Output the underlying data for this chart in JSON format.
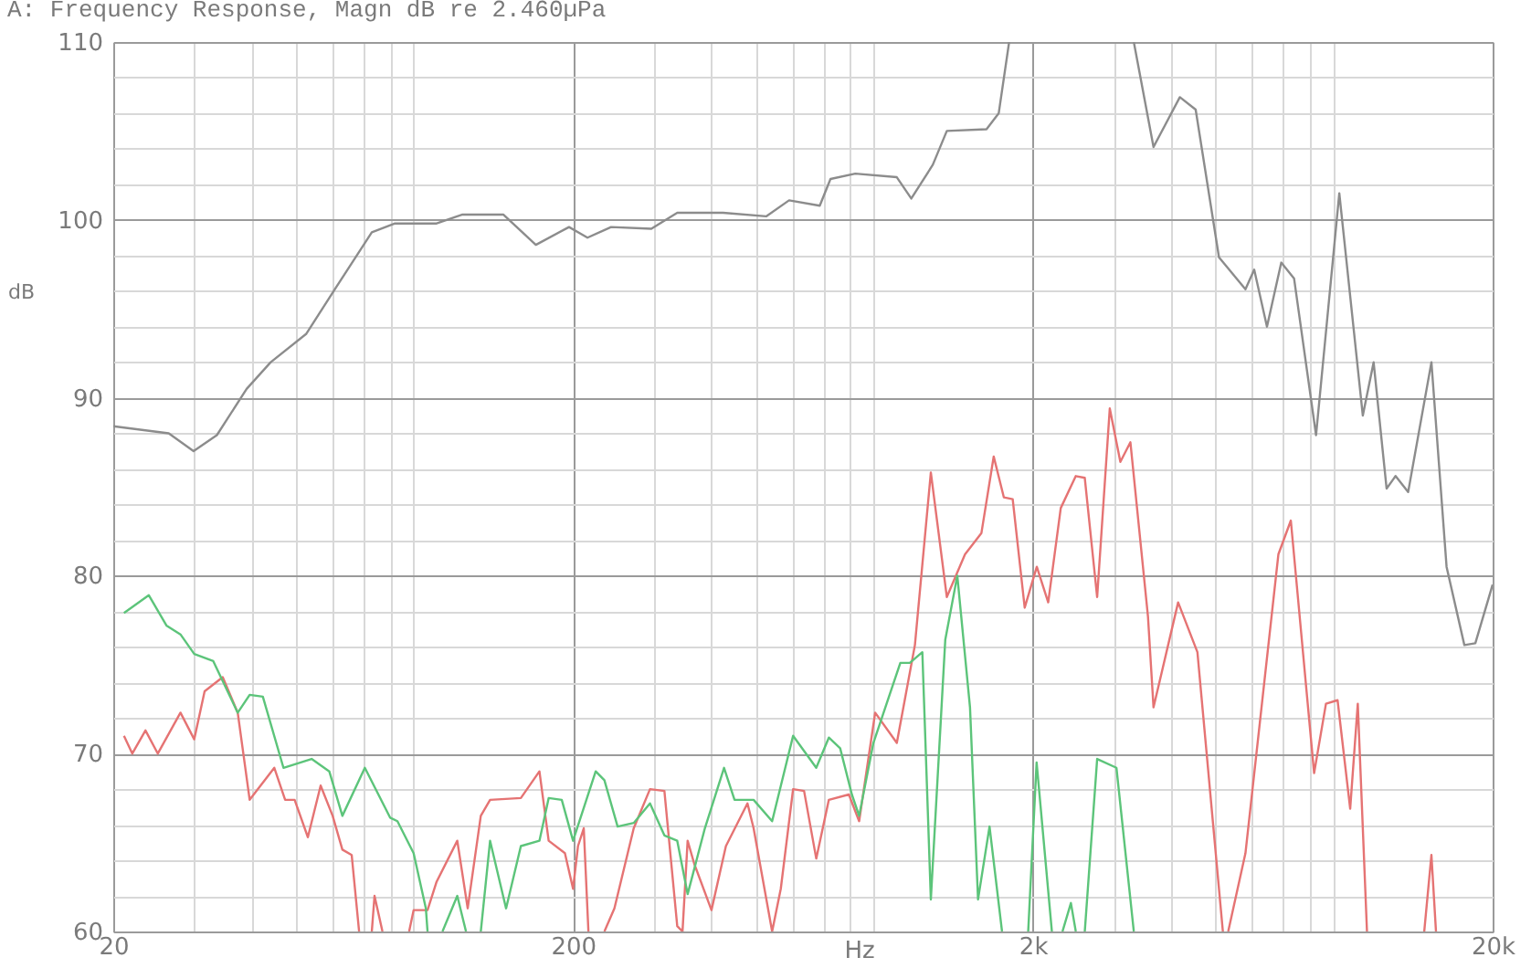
{
  "chart_data": {
    "type": "line",
    "title": "A: Frequency Response, Magn dB re 2.460µPa",
    "xlabel": "Hz",
    "ylabel": "dB",
    "log": "x",
    "grid": true,
    "xlim": [
      20,
      20000
    ],
    "ylim": [
      60,
      110
    ],
    "xticks": [
      20,
      {
        "value": 30,
        "label": null
      },
      {
        "value": 40,
        "label": null
      },
      {
        "value": 50,
        "label": null
      },
      {
        "value": 60,
        "label": null
      },
      {
        "value": 70,
        "label": null
      },
      {
        "value": 80,
        "label": null
      },
      {
        "value": 90,
        "label": null
      },
      200,
      {
        "value": 300,
        "label": null
      },
      {
        "value": 400,
        "label": null
      },
      {
        "value": 500,
        "label": null
      },
      {
        "value": 600,
        "label": null
      },
      {
        "value": 700,
        "label": null
      },
      {
        "value": 800,
        "label": null
      },
      {
        "value": 900,
        "label": null
      },
      {
        "value": 2000,
        "label": "2k"
      },
      {
        "value": 3000,
        "label": null
      },
      {
        "value": 4000,
        "label": null
      },
      {
        "value": 5000,
        "label": null
      },
      {
        "value": 6000,
        "label": null
      },
      {
        "value": 7000,
        "label": null
      },
      {
        "value": 8000,
        "label": null
      },
      {
        "value": 9000,
        "label": null
      },
      {
        "value": 20000,
        "label": "20k"
      }
    ],
    "yticks": [
      60,
      {
        "value": 62,
        "label": null
      },
      {
        "value": 64,
        "label": null
      },
      {
        "value": 66,
        "label": null
      },
      {
        "value": 68,
        "label": null
      },
      70,
      {
        "value": 72,
        "label": null
      },
      {
        "value": 74,
        "label": null
      },
      {
        "value": 76,
        "label": null
      },
      {
        "value": 78,
        "label": null
      },
      80,
      {
        "value": 82,
        "label": null
      },
      {
        "value": 84,
        "label": null
      },
      {
        "value": 86,
        "label": null
      },
      {
        "value": 88,
        "label": null
      },
      90,
      {
        "value": 92,
        "label": null
      },
      {
        "value": 94,
        "label": null
      },
      {
        "value": 96,
        "label": null
      },
      {
        "value": 98,
        "label": null
      },
      100,
      {
        "value": 102,
        "label": null
      },
      {
        "value": 104,
        "label": null
      },
      {
        "value": 106,
        "label": null
      },
      {
        "value": 108,
        "label": null
      },
      110
    ],
    "series": [
      {
        "color": "#8c8c8c",
        "x": [
          20,
          26.4,
          29.9,
          33.6,
          39,
          44,
          52.6,
          61,
          73,
          82,
          101,
          115,
          141,
          166,
          196,
          215,
          242,
          296,
          337,
          424,
          526,
          590,
          688,
          726,
          822,
          1012,
          1088,
          1212,
          1300,
          1586,
          1686,
          1776,
          2400,
          3316,
          3660,
          4176,
          4520,
          5080,
          5800,
          6060,
          6460,
          6940,
          7400,
          8260,
          9280,
          10440,
          11020,
          11760,
          12300,
          13100,
          14720,
          15880,
          17360,
          18340,
          20000
        ],
        "values": [
          88.4,
          88.0,
          87.0,
          87.9,
          90.5,
          92.0,
          93.6,
          96.2,
          99.3,
          99.8,
          99.8,
          100.3,
          100.3,
          98.6,
          99.6,
          99.0,
          99.6,
          99.5,
          100.4,
          100.4,
          100.2,
          101.1,
          100.8,
          102.3,
          102.6,
          102.4,
          101.2,
          103.1,
          105.0,
          105.1,
          106.0,
          110,
          null,
          110,
          104.1,
          106.9,
          106.2,
          97.9,
          96.1,
          97.2,
          94.0,
          97.6,
          96.7,
          87.9,
          101.5,
          89.0,
          92.0,
          84.9,
          85.6,
          84.7,
          92.0,
          80.5,
          76.1,
          76.2,
          79.5
        ]
      },
      {
        "color": "#e57373",
        "x": [
          21.1,
          22,
          23.5,
          25,
          28,
          30,
          31.6,
          34.6,
          37.3,
          39.6,
          44.8,
          47.3,
          49.6,
          53,
          56.5,
          60,
          63,
          66,
          68.5,
          71,
          73,
          74,
          77,
          82,
          88,
          90,
          96.5,
          101,
          112,
          118,
          126,
          132,
          154,
          169,
          177,
          192,
          200,
          205,
          211,
          216,
          225,
          234,
          246,
          271,
          294,
          316,
          337,
          346,
          355,
          367,
          400,
          430,
          479,
          494,
          542,
          566,
          602,
          636,
          676,
          720,
          796,
          838,
          908,
          1012,
          1108,
          1200,
          1300,
          1424,
          1546,
          1644,
          1730,
          1808,
          1920,
          2040,
          2160,
          2300,
          2480,
          2594,
          2760,
          2940,
          3100,
          3260,
          3560,
          3660,
          4140,
          4560,
          5180,
          5250,
          5320,
          5800,
          6840,
          7280,
          8180,
          8680,
          9200,
          9800,
          10180,
          10660,
          12000,
          14200,
          14720,
          15060
        ],
        "values": [
          71.0,
          70.0,
          71.3,
          70.0,
          72.3,
          70.8,
          73.5,
          74.3,
          72.3,
          67.4,
          69.2,
          67.4,
          67.4,
          65.3,
          68.2,
          66.5,
          64.6,
          64.3,
          60,
          null,
          60,
          62,
          60,
          null,
          60,
          61.2,
          61.2,
          62.8,
          65.1,
          61.3,
          66.5,
          67.4,
          67.5,
          69.0,
          65.1,
          64.4,
          62.4,
          64.8,
          65.8,
          60,
          null,
          60,
          61.3,
          65.8,
          68.0,
          67.9,
          60.3,
          60,
          65.1,
          63.8,
          61.2,
          64.8,
          67.2,
          65.8,
          60,
          62.4,
          68.0,
          67.9,
          64.1,
          67.4,
          67.7,
          66.2,
          72.3,
          70.6,
          76.1,
          85.8,
          78.8,
          81.2,
          82.4,
          86.7,
          84.4,
          84.3,
          78.2,
          80.5,
          78.5,
          83.8,
          85.6,
          85.5,
          78.8,
          89.4,
          86.4,
          87.5,
          77.7,
          72.6,
          78.5,
          75.7,
          60,
          null,
          60,
          64.4,
          81.2,
          83.1,
          68.9,
          72.8,
          73.0,
          66.9,
          72.8,
          60,
          null,
          60,
          64.3,
          60
        ]
      },
      {
        "color": "#5cc47a",
        "x": [
          21.1,
          23.9,
          26.1,
          28,
          30,
          33,
          37.3,
          39.6,
          42.3,
          46.9,
          54,
          59,
          63,
          70.5,
          80,
          83,
          90,
          95.7,
          96.5,
          100,
          104,
          112,
          117,
          121,
          126,
          132,
          143,
          154,
          169,
          177,
          189,
          200,
          224,
          234,
          250,
          271,
          294,
          316,
          337,
          355,
          387,
          426,
          449,
          494,
          542,
          602,
          676,
          720,
          762,
          808,
          838,
          900,
          1030,
          1080,
          1150,
          1200,
          1290,
          1370,
          1460,
          1520,
          1610,
          1714,
          1850,
          1954,
          2038,
          2200,
          2260,
          2320,
          2420,
          2480,
          2540,
          2594,
          2760,
          3040,
          3316
        ],
        "values": [
          77.9,
          78.9,
          77.2,
          76.7,
          75.6,
          75.2,
          72.3,
          73.3,
          73.2,
          69.2,
          69.7,
          69.0,
          66.5,
          69.2,
          66.4,
          66.2,
          64.4,
          61.3,
          60,
          null,
          60,
          62,
          60,
          null,
          60,
          65.1,
          61.3,
          64.8,
          65.1,
          67.5,
          67.4,
          65.1,
          69.0,
          68.5,
          65.9,
          66.1,
          67.2,
          65.4,
          65.1,
          62.1,
          65.8,
          69.2,
          67.4,
          67.4,
          66.2,
          71.0,
          69.2,
          70.9,
          70.3,
          67.7,
          66.5,
          70.6,
          75.1,
          75.1,
          75.7,
          61.8,
          76.4,
          80.0,
          72.6,
          61.8,
          65.9,
          60,
          null,
          60,
          69.5,
          60,
          null,
          60,
          61.6,
          60,
          null,
          60,
          69.7,
          69.2,
          60
        ]
      }
    ]
  }
}
